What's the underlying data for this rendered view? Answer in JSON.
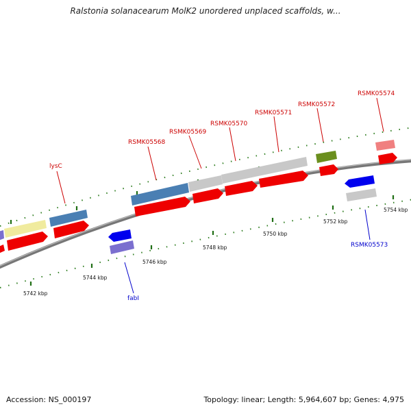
{
  "title": "Ralstonia solanacearum MolK2 unordered unplaced scaffolds, w...",
  "footer": {
    "accession": "Accession: NS_000197",
    "stats": "Topology: linear; Length: 5,964,607 bp; Genes: 4,975"
  },
  "colors": {
    "backbone": "#8a8a8a",
    "ruler": "#2e7d1f",
    "gene_label_forward": "#cc0000",
    "gene_label_reverse": "#0000cc",
    "cds": "#ee0000"
  },
  "ruler_labels": [
    "5742 kbp",
    "5744 kbp",
    "5746 kbp",
    "5748 kbp",
    "5750 kbp",
    "5752 kbp",
    "5754 kbp"
  ],
  "gene_labels": [
    {
      "text": "lysC",
      "strand": "forward"
    },
    {
      "text": "RSMK05568",
      "strand": "forward"
    },
    {
      "text": "RSMK05569",
      "strand": "forward"
    },
    {
      "text": "RSMK05570",
      "strand": "forward"
    },
    {
      "text": "RSMK05571",
      "strand": "forward"
    },
    {
      "text": "RSMK05572",
      "strand": "forward"
    },
    {
      "text": "RSMK05574",
      "strand": "forward"
    },
    {
      "text": "RSMK05573",
      "strand": "reverse"
    },
    {
      "text": "fabI",
      "strand": "reverse"
    }
  ]
}
